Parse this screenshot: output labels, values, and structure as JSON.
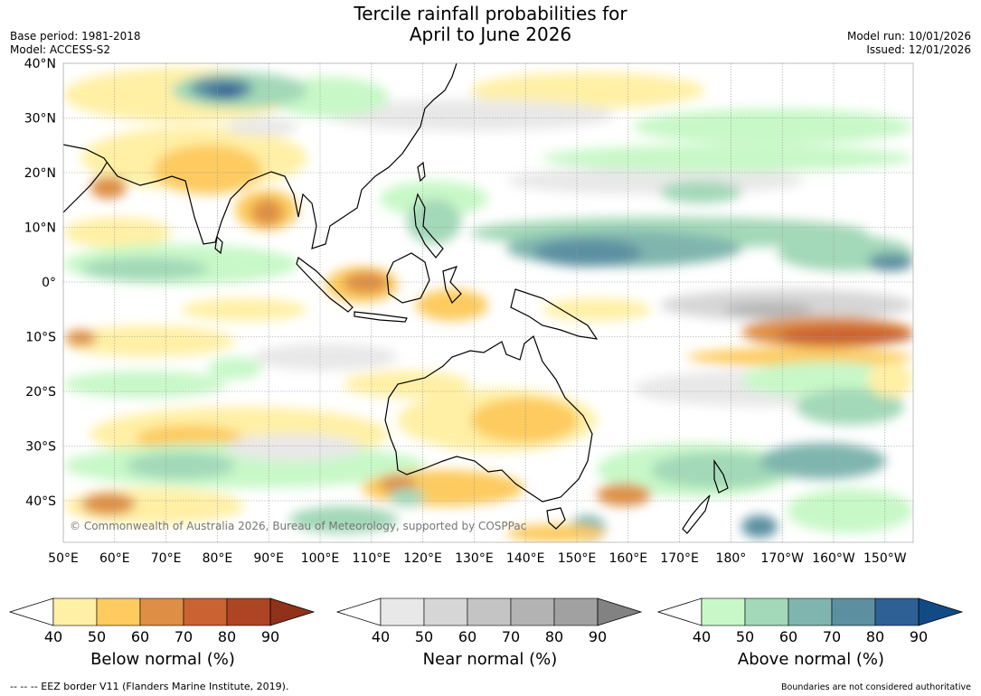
{
  "title_line1": "Tercile rainfall probabilities for",
  "title_line2": "April to June 2026",
  "base_period": "Base period: 1981-2018",
  "model": "Model: ACCESS-S2",
  "model_run": "Model run: 10/01/2026",
  "issued": "Issued: 12/01/2026",
  "credit": "© Commonwealth of Australia 2026, Bureau of Meteorology, supported by COSPPac",
  "lat_labels": [
    "40°N",
    "30°N",
    "20°N",
    "10°N",
    "0°",
    "10°S",
    "20°S",
    "30°S",
    "40°S"
  ],
  "lon_labels": [
    "50°E",
    "60°E",
    "70°E",
    "80°E",
    "90°E",
    "100°E",
    "110°E",
    "120°E",
    "130°E",
    "140°E",
    "150°E",
    "160°E",
    "170°E",
    "180°",
    "170°W",
    "160°W",
    "150°W"
  ],
  "colorbars": [
    {
      "title": "Below normal (%)",
      "ticks": [
        "40",
        "50",
        "60",
        "70",
        "80",
        "90"
      ],
      "colors": [
        "#fff0a6",
        "#fdcb5f",
        "#de8f45",
        "#cb6232",
        "#ad4524"
      ],
      "extend_color": "#8f3219"
    },
    {
      "title": "Near normal (%)",
      "ticks": [
        "40",
        "50",
        "60",
        "70",
        "80",
        "90"
      ],
      "colors": [
        "#e8e8e8",
        "#d6d6d6",
        "#c4c4c4",
        "#b3b3b3",
        "#a1a1a1"
      ],
      "extend_color": "#828282"
    },
    {
      "title": "Above normal (%)",
      "ticks": [
        "40",
        "50",
        "60",
        "70",
        "80",
        "90"
      ],
      "colors": [
        "#c8f8c8",
        "#a3d8b8",
        "#7fb5ae",
        "#5c90a0",
        "#2f6095"
      ],
      "extend_color": "#124a86"
    }
  ],
  "footer_left": "--  --  -- EEZ border V11 (Flanders Marine Institute, 2019).",
  "footer_right": "Boundaries are not considered authoritative",
  "colors": {
    "below": "#fdcb5f",
    "near": "#d6d6d6",
    "above": "#a3d8b8",
    "coast": "#000000",
    "border": "#888888"
  }
}
